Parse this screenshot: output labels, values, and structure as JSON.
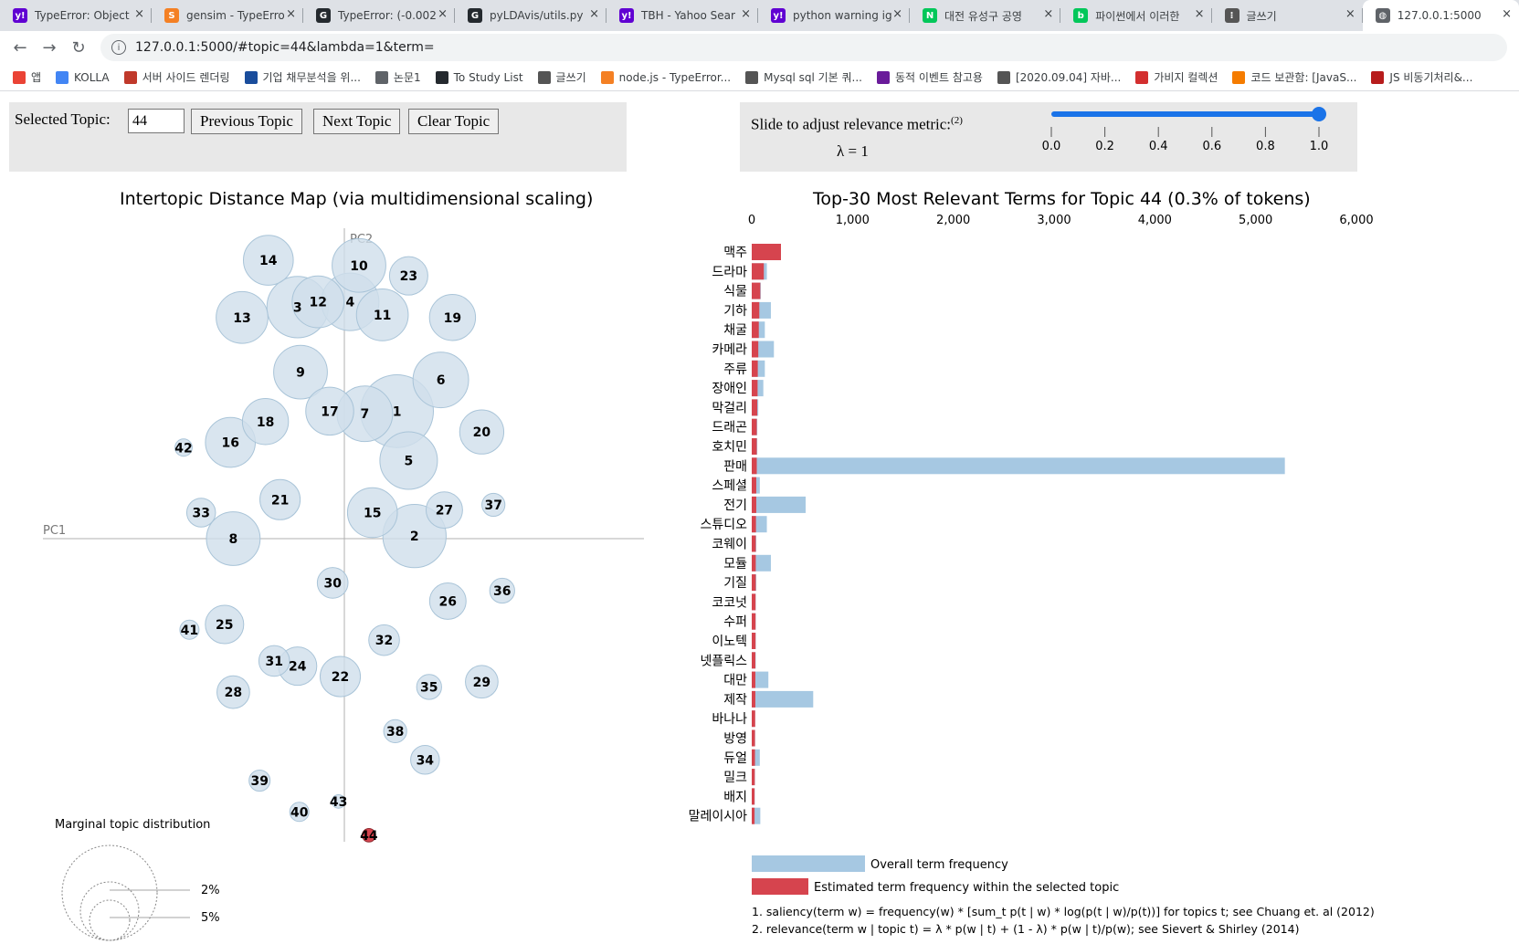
{
  "browser": {
    "tabs": [
      {
        "label": "TypeError: Object",
        "icon": "yahoo-icon",
        "color": "#6001d2",
        "glyph": "y!"
      },
      {
        "label": "gensim - TypeErro",
        "icon": "stackoverflow-icon",
        "color": "#f48024",
        "glyph": "S"
      },
      {
        "label": "TypeError: (-0.002",
        "icon": "github-icon",
        "color": "#24292e",
        "glyph": "G"
      },
      {
        "label": "pyLDAvis/utils.py",
        "icon": "github-icon",
        "color": "#24292e",
        "glyph": "G"
      },
      {
        "label": "TBH - Yahoo Sear",
        "icon": "yahoo-icon",
        "color": "#6001d2",
        "glyph": "y!"
      },
      {
        "label": "python warning ig",
        "icon": "yahoo-icon",
        "color": "#6001d2",
        "glyph": "y!"
      },
      {
        "label": "대전 유성구 공영",
        "icon": "naver-icon",
        "color": "#03c75a",
        "glyph": "N"
      },
      {
        "label": "파이썬에서 이러한",
        "icon": "naver-blog-icon",
        "color": "#03c75a",
        "glyph": "b"
      },
      {
        "label": "글쓰기",
        "icon": "dots-icon",
        "color": "#555555",
        "glyph": "⁝"
      },
      {
        "label": "127.0.0.1:5000",
        "icon": "globe-icon",
        "color": "#5f6368",
        "glyph": "◍",
        "active": true
      }
    ],
    "close_glyph": "×",
    "url": "127.0.0.1:5000/#topic=44&lambda=1&term=",
    "nav": {
      "back": "←",
      "forward": "→",
      "reload": "↻",
      "info": "i"
    },
    "bookmarks": [
      {
        "label": "앱",
        "icon": "apps-icon",
        "color": "#ea4335"
      },
      {
        "label": "KOLLA",
        "icon": "kolla-icon",
        "color": "#4285f4"
      },
      {
        "label": "서버 사이드 렌더링",
        "icon": "page-icon",
        "color": "#c0392b"
      },
      {
        "label": "기업 채무분석을 위...",
        "icon": "kifrs-icon",
        "color": "#1a4d9c"
      },
      {
        "label": "논문1",
        "icon": "globe-icon",
        "color": "#5f6368"
      },
      {
        "label": "To Study List",
        "icon": "github-icon",
        "color": "#24292e"
      },
      {
        "label": "글쓰기",
        "icon": "dots-icon",
        "color": "#555555"
      },
      {
        "label": "node.js - TypeError...",
        "icon": "stackoverflow-icon",
        "color": "#f48024"
      },
      {
        "label": "Mysql sql 기본 쿼...",
        "icon": "dots-icon",
        "color": "#555555"
      },
      {
        "label": "동적 이벤트 참고용",
        "icon": "image-icon",
        "color": "#6a1b9a"
      },
      {
        "label": "[2020.09.04] 자바...",
        "icon": "dots-icon",
        "color": "#555555"
      },
      {
        "label": "가비지 컬렉션",
        "icon": "figure-icon",
        "color": "#d32f2f"
      },
      {
        "label": "코드 보관함: [JavaS...",
        "icon": "blogger-icon",
        "color": "#f57c00"
      },
      {
        "label": "JS 비동기처리&...",
        "icon": "record-icon",
        "color": "#b71c1c"
      }
    ]
  },
  "controls": {
    "selected_topic_label": "Selected Topic:",
    "selected_topic_value": "44",
    "previous_label": "Previous Topic",
    "next_label": "Next Topic",
    "clear_label": "Clear Topic",
    "slider_label": "Slide to adjust relevance metric:",
    "slider_footnote": "(2)",
    "lambda_text": "λ = 1",
    "lambda_value": 1,
    "slider_ticks": [
      "0.0",
      "0.2",
      "0.4",
      "0.6",
      "0.8",
      "1.0"
    ]
  },
  "left_title": "Intertopic Distance Map (via multidimensional scaling)",
  "right_title": "Top-30 Most Relevant Terms for Topic 44 (0.3% of tokens)",
  "axis_labels": {
    "pc1": "PC1",
    "pc2": "PC2"
  },
  "marginal": {
    "title": "Marginal topic distribution",
    "labels": [
      "2%",
      "5%"
    ]
  },
  "legend": {
    "overall": "Overall term frequency",
    "estimated": "Estimated term frequency within the selected topic",
    "overall_color": "#a6c8e2",
    "estimated_color": "#d6444e"
  },
  "footnotes": [
    "1. saliency(term w) = frequency(w) * [sum_t p(t | w) * log(p(t | w)/p(t))] for topics t; see Chuang et. al (2012)",
    "2. relevance(term w | topic t) = λ * p(w | t) + (1 - λ) * p(w | t)/p(w); see Sievert & Shirley (2014)"
  ],
  "colors": {
    "bubble_fill": "#cfdfeb",
    "bubble_stroke": "#a9c4d8",
    "selected_fill": "#d6444e"
  },
  "chart_data": [
    {
      "type": "scatter",
      "title": "Intertopic Distance Map (via multidimensional scaling)",
      "xlabel": "PC1",
      "ylabel": "PC2",
      "selected_topic": 44,
      "note": "bubble coordinates in PC1/PC2 units; size = relative token share",
      "topics": [
        {
          "id": 1,
          "x": 0.09,
          "y": 0.245,
          "size": 1.9
        },
        {
          "id": 2,
          "x": 0.12,
          "y": 0.005,
          "size": 1.65
        },
        {
          "id": 3,
          "x": -0.08,
          "y": 0.445,
          "size": 1.6
        },
        {
          "id": 4,
          "x": 0.01,
          "y": 0.455,
          "size": 1.5
        },
        {
          "id": 5,
          "x": 0.11,
          "y": 0.15,
          "size": 1.5
        },
        {
          "id": 6,
          "x": 0.165,
          "y": 0.305,
          "size": 1.45
        },
        {
          "id": 7,
          "x": 0.035,
          "y": 0.24,
          "size": 1.45
        },
        {
          "id": 8,
          "x": -0.19,
          "y": 0.0,
          "size": 1.4
        },
        {
          "id": 9,
          "x": -0.075,
          "y": 0.32,
          "size": 1.4
        },
        {
          "id": 10,
          "x": 0.025,
          "y": 0.525,
          "size": 1.4
        },
        {
          "id": 11,
          "x": 0.065,
          "y": 0.43,
          "size": 1.35
        },
        {
          "id": 12,
          "x": -0.045,
          "y": 0.455,
          "size": 1.35
        },
        {
          "id": 13,
          "x": -0.175,
          "y": 0.425,
          "size": 1.35
        },
        {
          "id": 14,
          "x": -0.13,
          "y": 0.535,
          "size": 1.3
        },
        {
          "id": 15,
          "x": 0.048,
          "y": 0.05,
          "size": 1.3
        },
        {
          "id": 16,
          "x": -0.195,
          "y": 0.185,
          "size": 1.3
        },
        {
          "id": 17,
          "x": -0.025,
          "y": 0.245,
          "size": 1.25
        },
        {
          "id": 18,
          "x": -0.135,
          "y": 0.225,
          "size": 1.2
        },
        {
          "id": 19,
          "x": 0.185,
          "y": 0.425,
          "size": 1.2
        },
        {
          "id": 20,
          "x": 0.235,
          "y": 0.205,
          "size": 1.15
        },
        {
          "id": 21,
          "x": -0.11,
          "y": 0.075,
          "size": 1.05
        },
        {
          "id": 22,
          "x": -0.007,
          "y": -0.265,
          "size": 1.05
        },
        {
          "id": 23,
          "x": 0.11,
          "y": 0.505,
          "size": 1.0
        },
        {
          "id": 24,
          "x": -0.08,
          "y": -0.245,
          "size": 1.0
        },
        {
          "id": 25,
          "x": -0.205,
          "y": -0.165,
          "size": 1.0
        },
        {
          "id": 26,
          "x": 0.177,
          "y": -0.12,
          "size": 0.95
        },
        {
          "id": 27,
          "x": 0.171,
          "y": 0.055,
          "size": 0.95
        },
        {
          "id": 28,
          "x": -0.19,
          "y": -0.295,
          "size": 0.85
        },
        {
          "id": 29,
          "x": 0.235,
          "y": -0.275,
          "size": 0.85
        },
        {
          "id": 30,
          "x": -0.02,
          "y": -0.085,
          "size": 0.8
        },
        {
          "id": 31,
          "x": -0.12,
          "y": -0.235,
          "size": 0.8
        },
        {
          "id": 32,
          "x": 0.068,
          "y": -0.195,
          "size": 0.8
        },
        {
          "id": 33,
          "x": -0.245,
          "y": 0.05,
          "size": 0.75
        },
        {
          "id": 34,
          "x": 0.138,
          "y": -0.425,
          "size": 0.75
        },
        {
          "id": 35,
          "x": 0.145,
          "y": -0.285,
          "size": 0.65
        },
        {
          "id": 36,
          "x": 0.27,
          "y": -0.1,
          "size": 0.65
        },
        {
          "id": 37,
          "x": 0.255,
          "y": 0.065,
          "size": 0.6
        },
        {
          "id": 38,
          "x": 0.087,
          "y": -0.37,
          "size": 0.6
        },
        {
          "id": 39,
          "x": -0.145,
          "y": -0.465,
          "size": 0.55
        },
        {
          "id": 40,
          "x": -0.077,
          "y": -0.525,
          "size": 0.5
        },
        {
          "id": 41,
          "x": -0.265,
          "y": -0.175,
          "size": 0.5
        },
        {
          "id": 42,
          "x": -0.275,
          "y": 0.175,
          "size": 0.45
        },
        {
          "id": 43,
          "x": -0.01,
          "y": -0.505,
          "size": 0.35
        },
        {
          "id": 44,
          "x": 0.042,
          "y": -0.57,
          "size": 0.35
        }
      ]
    },
    {
      "type": "bar",
      "orientation": "horizontal",
      "title": "Top-30 Most Relevant Terms for Topic 44 (0.3% of tokens)",
      "xlim": [
        0,
        6000
      ],
      "x_ticks": [
        "0",
        "1,000",
        "2,000",
        "3,000",
        "4,000",
        "5,000",
        "6,000"
      ],
      "x_tick_values": [
        0,
        1000,
        2000,
        3000,
        4000,
        5000,
        6000
      ],
      "series": [
        {
          "name": "Overall term frequency",
          "color": "#a6c8e2"
        },
        {
          "name": "Estimated term frequency within the selected topic",
          "color": "#d6444e"
        }
      ],
      "terms": [
        {
          "term": "맥주",
          "overall": 290,
          "estimated": 290
        },
        {
          "term": "드라마",
          "overall": 150,
          "estimated": 120
        },
        {
          "term": "식물",
          "overall": 90,
          "estimated": 85
        },
        {
          "term": "기하",
          "overall": 190,
          "estimated": 75
        },
        {
          "term": "채굴",
          "overall": 130,
          "estimated": 70
        },
        {
          "term": "카메라",
          "overall": 220,
          "estimated": 65
        },
        {
          "term": "주류",
          "overall": 130,
          "estimated": 60
        },
        {
          "term": "장애인",
          "overall": 115,
          "estimated": 58
        },
        {
          "term": "막걸리",
          "overall": 65,
          "estimated": 55
        },
        {
          "term": "드래곤",
          "overall": 55,
          "estimated": 50
        },
        {
          "term": "호치민",
          "overall": 55,
          "estimated": 50
        },
        {
          "term": "판매",
          "overall": 5290,
          "estimated": 50
        },
        {
          "term": "스페셜",
          "overall": 80,
          "estimated": 45
        },
        {
          "term": "전기",
          "overall": 535,
          "estimated": 45
        },
        {
          "term": "스튜디오",
          "overall": 150,
          "estimated": 42
        },
        {
          "term": "코웨이",
          "overall": 45,
          "estimated": 40
        },
        {
          "term": "모듈",
          "overall": 190,
          "estimated": 40
        },
        {
          "term": "기질",
          "overall": 45,
          "estimated": 40
        },
        {
          "term": "코코넛",
          "overall": 40,
          "estimated": 38
        },
        {
          "term": "수퍼",
          "overall": 40,
          "estimated": 38
        },
        {
          "term": "이노텍",
          "overall": 40,
          "estimated": 38
        },
        {
          "term": "넷플릭스",
          "overall": 40,
          "estimated": 36
        },
        {
          "term": "대만",
          "overall": 165,
          "estimated": 36
        },
        {
          "term": "제작",
          "overall": 610,
          "estimated": 36
        },
        {
          "term": "바나나",
          "overall": 34,
          "estimated": 34
        },
        {
          "term": "방영",
          "overall": 34,
          "estimated": 32
        },
        {
          "term": "듀얼",
          "overall": 80,
          "estimated": 32
        },
        {
          "term": "밀크",
          "overall": 32,
          "estimated": 30
        },
        {
          "term": "배지",
          "overall": 30,
          "estimated": 28
        },
        {
          "term": "말레이시아",
          "overall": 85,
          "estimated": 28
        }
      ]
    }
  ]
}
